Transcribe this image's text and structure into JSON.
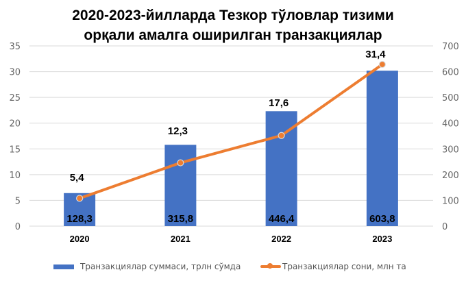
{
  "title": {
    "line1": "2020-2023-йилларда  Тезкор тўловлар тизими",
    "line2": "орқали амалга оширилган транзакциялар"
  },
  "colors": {
    "bar": "#4472C4",
    "line": "#ED7D31",
    "marker_border": "#D9D9D9",
    "grid": "#D9D9D9"
  },
  "legend": {
    "bar_label": "Транзакциялар суммаси, трлн сўмда",
    "line_label": "Транзакциялар сони, млн та"
  },
  "chart_data": {
    "type": "bar+line",
    "title": "2020-2023-йилларда Тезкор тўловлар тизими орқали амалга оширилган транзакциялар",
    "categories": [
      "2020",
      "2021",
      "2022",
      "2023"
    ],
    "series": [
      {
        "name": "Транзакциялар суммаси, трлн сўмда",
        "type": "bar",
        "axis": "right",
        "values": [
          128.3,
          315.8,
          446.4,
          603.8
        ],
        "labels": [
          "128,3",
          "315,8",
          "446,4",
          "603,8"
        ]
      },
      {
        "name": "Транзакциялар сони, млн та",
        "type": "line",
        "axis": "left",
        "values": [
          5.4,
          12.3,
          17.6,
          31.4
        ],
        "labels": [
          "5,4",
          "12,3",
          "17,6",
          "31,4"
        ]
      }
    ],
    "left_axis": {
      "ylim": [
        0,
        35
      ],
      "ticks": [
        "0",
        "5",
        "10",
        "15",
        "20",
        "25",
        "30",
        "35"
      ]
    },
    "right_axis": {
      "ylim": [
        0,
        700
      ],
      "ticks": [
        "0",
        "100",
        "200",
        "300",
        "400",
        "500",
        "600",
        "700"
      ]
    },
    "xlabel": "",
    "ylabel": "",
    "grid": true,
    "legend_position": "bottom"
  }
}
